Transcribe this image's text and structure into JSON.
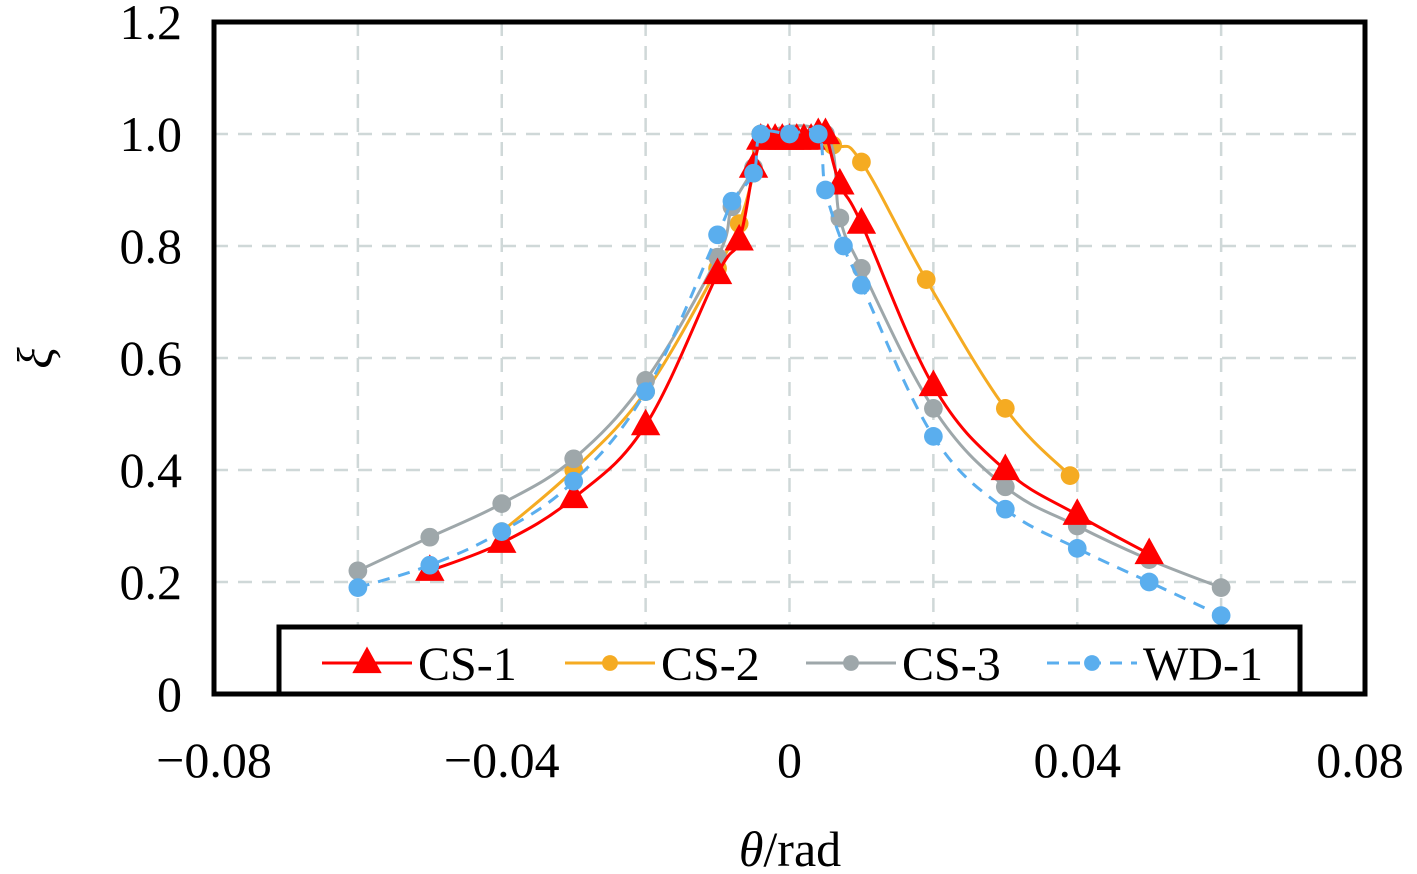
{
  "chart_data": {
    "type": "line",
    "title": "",
    "xlabel_symbol": "θ",
    "xlabel_unit": "/rad",
    "ylabel": "ξ",
    "xlim": [
      -0.08,
      0.08
    ],
    "ylim": [
      0,
      1.2
    ],
    "grid": true,
    "legend_position": "bottom",
    "x_ticks": [
      -0.08,
      -0.04,
      0,
      0.04,
      0.08
    ],
    "x_tick_labels": [
      "−0.08",
      "−0.04",
      "0",
      "0.04",
      "0.08"
    ],
    "x_grid": [
      -0.06,
      -0.04,
      -0.02,
      0,
      0.02,
      0.04,
      0.06
    ],
    "y_ticks": [
      0,
      0.2,
      0.4,
      0.6,
      0.8,
      1.0,
      1.2
    ],
    "y_tick_labels": [
      "0",
      "0.2",
      "0.4",
      "0.6",
      "0.8",
      "1.0",
      "1.2"
    ],
    "series": [
      {
        "name": "CS-1",
        "color": "#ff0000",
        "marker": "triangle",
        "dashed": false,
        "x": [
          -0.05,
          -0.04,
          -0.03,
          -0.02,
          -0.01,
          -0.007,
          -0.005,
          -0.004,
          -0.003,
          -0.002,
          -0.001,
          0,
          0.001,
          0.002,
          0.003,
          0.004,
          0.005,
          0.007,
          0.01,
          0.02,
          0.03,
          0.04,
          0.05
        ],
        "y": [
          0.22,
          0.27,
          0.35,
          0.48,
          0.75,
          0.81,
          0.94,
          0.99,
          0.99,
          0.99,
          0.99,
          0.99,
          0.99,
          0.99,
          0.99,
          1.0,
          1.0,
          0.91,
          0.84,
          0.55,
          0.4,
          0.32,
          0.25
        ]
      },
      {
        "name": "CS-2",
        "color": "#f5ab22",
        "marker": "circle",
        "dashed": false,
        "x": [
          -0.04,
          -0.03,
          -0.02,
          -0.01,
          -0.007,
          -0.005,
          -0.004,
          0.006,
          0.01,
          0.019,
          0.03,
          0.039
        ],
        "y": [
          0.29,
          0.4,
          0.54,
          0.76,
          0.84,
          0.93,
          1.0,
          0.98,
          0.95,
          0.74,
          0.51,
          0.39
        ]
      },
      {
        "name": "CS-3",
        "color": "#9ea7aa",
        "marker": "circle",
        "dashed": false,
        "x": [
          -0.06,
          -0.05,
          -0.04,
          -0.03,
          -0.02,
          -0.01,
          -0.008,
          -0.005,
          -0.004,
          0.005,
          0.007,
          0.01,
          0.02,
          0.03,
          0.04,
          0.05,
          0.06
        ],
        "y": [
          0.22,
          0.28,
          0.34,
          0.42,
          0.56,
          0.78,
          0.87,
          0.94,
          1.0,
          1.0,
          0.85,
          0.76,
          0.51,
          0.37,
          0.3,
          0.24,
          0.19
        ]
      },
      {
        "name": "WD-1",
        "color": "#5aaeee",
        "marker": "circle",
        "dashed": true,
        "x": [
          -0.06,
          -0.05,
          -0.04,
          -0.03,
          -0.02,
          -0.01,
          -0.008,
          -0.005,
          -0.004,
          0,
          0.004,
          0.005,
          0.0075,
          0.01,
          0.02,
          0.03,
          0.04,
          0.05,
          0.06
        ],
        "y": [
          0.19,
          0.23,
          0.29,
          0.38,
          0.54,
          0.82,
          0.88,
          0.93,
          1.0,
          1.0,
          1.0,
          0.9,
          0.8,
          0.73,
          0.46,
          0.33,
          0.26,
          0.2,
          0.14
        ]
      }
    ]
  }
}
